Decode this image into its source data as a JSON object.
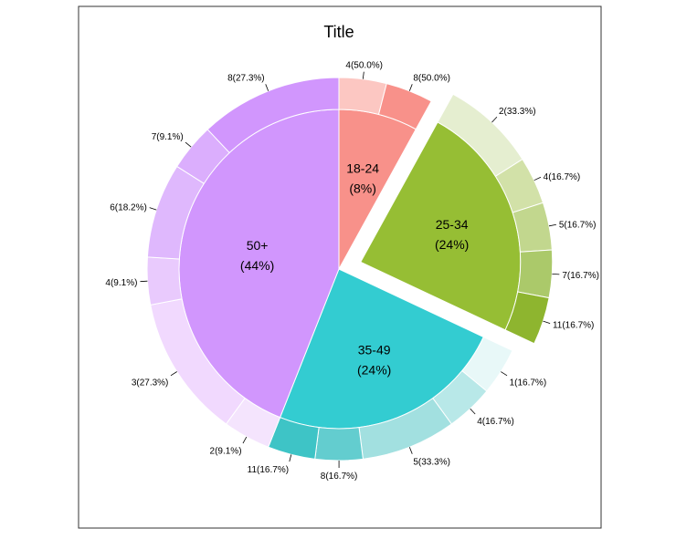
{
  "chart_data": {
    "type": "pie",
    "subtype": "donut-pie",
    "title": "Title",
    "categories": [
      {
        "label": "18-24",
        "percent_label": "(8%)",
        "value": 8,
        "color": "#F8918A",
        "exploded": false,
        "sub": [
          {
            "label": "4(50.0%)",
            "value": 50.0,
            "color": "#FCC7C2"
          },
          {
            "label": "8(50.0%)",
            "value": 50.0,
            "color": "#F8918A"
          }
        ]
      },
      {
        "label": "25-34",
        "percent_label": "(24%)",
        "value": 24,
        "color": "#96BE34",
        "exploded": true,
        "sub": [
          {
            "label": "2(33.3%)",
            "value": 33.3,
            "color": "#E5EED0"
          },
          {
            "label": "4(16.7%)",
            "value": 16.7,
            "color": "#D2E1A8"
          },
          {
            "label": "5(16.7%)",
            "value": 16.7,
            "color": "#C2D78E"
          },
          {
            "label": "7(16.7%)",
            "value": 16.7,
            "color": "#ABC96A"
          },
          {
            "label": "11(16.7%)",
            "value": 16.7,
            "color": "#8EB52F"
          }
        ]
      },
      {
        "label": "35-49",
        "percent_label": "(24%)",
        "value": 24,
        "color": "#33CCD1",
        "exploded": false,
        "sub": [
          {
            "label": "1(16.7%)",
            "value": 16.7,
            "color": "#E8F8F8"
          },
          {
            "label": "4(16.7%)",
            "value": 16.7,
            "color": "#B8E8E8"
          },
          {
            "label": "5(33.3%)",
            "value": 33.3,
            "color": "#A2E0E0"
          },
          {
            "label": "8(16.7%)",
            "value": 16.7,
            "color": "#63CDCF"
          },
          {
            "label": "11(16.7%)",
            "value": 16.7,
            "color": "#3EC4C6"
          }
        ]
      },
      {
        "label": "50+",
        "percent_label": "(44%)",
        "value": 44,
        "color": "#D196FD",
        "exploded": false,
        "sub": [
          {
            "label": "2(9.1%)",
            "value": 9.1,
            "color": "#F4E4FD"
          },
          {
            "label": "3(27.3%)",
            "value": 27.3,
            "color": "#F1D9FE"
          },
          {
            "label": "4(9.1%)",
            "value": 9.1,
            "color": "#E9CAFD"
          },
          {
            "label": "6(18.2%)",
            "value": 18.2,
            "color": "#DFB8FD"
          },
          {
            "label": "7(9.1%)",
            "value": 9.1,
            "color": "#DBAEFD"
          },
          {
            "label": "8(27.3%)",
            "value": 27.3,
            "color": "#D196FD"
          }
        ]
      }
    ]
  }
}
